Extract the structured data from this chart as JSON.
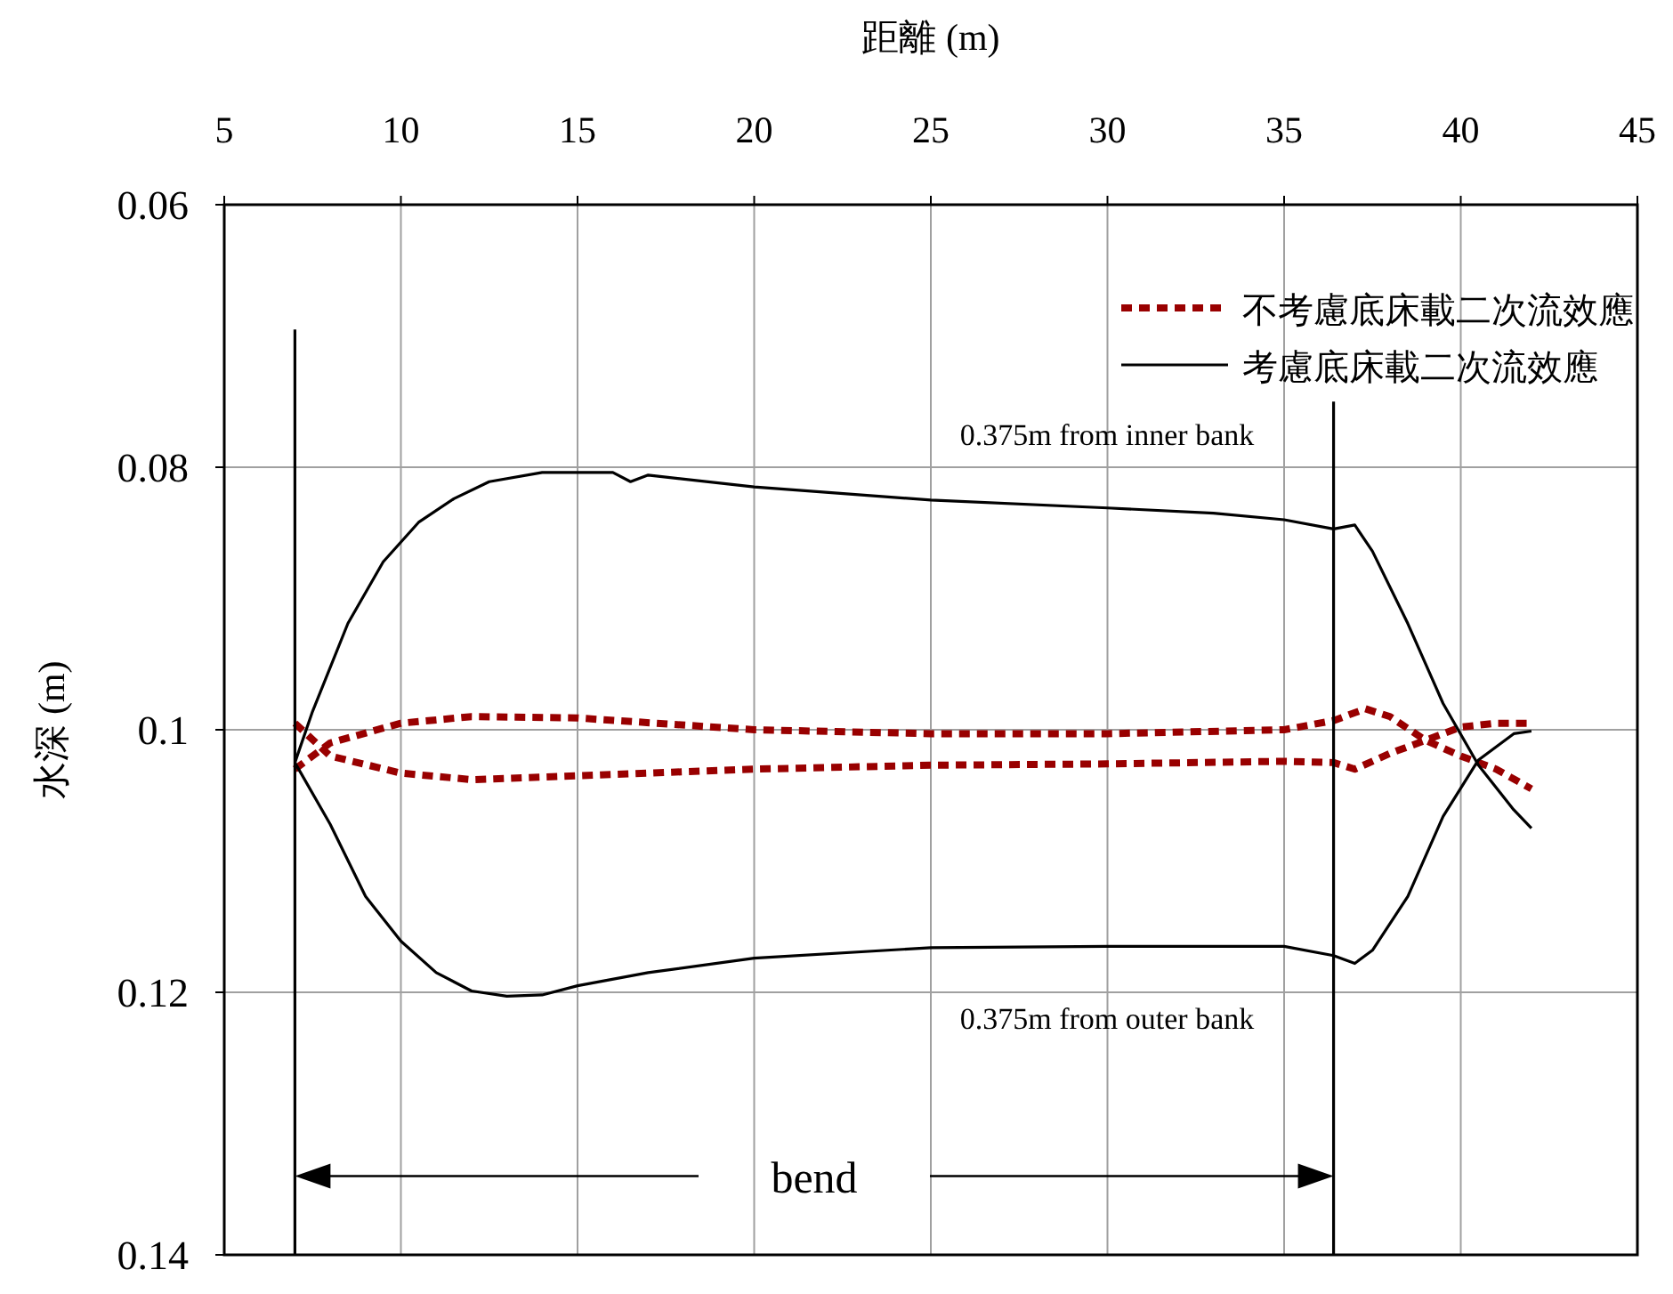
{
  "chart_data": {
    "type": "line",
    "xlabel": "距離 (m)",
    "ylabel": "水深 (m)",
    "xlim": [
      5,
      45
    ],
    "xticks": [
      5,
      10,
      15,
      20,
      25,
      30,
      35,
      40,
      45
    ],
    "ylim": [
      0.14,
      0.06
    ],
    "yticks": [
      0.06,
      0.08,
      0.1,
      0.12,
      0.14
    ],
    "grid": true,
    "legend": "top right",
    "series": [
      {
        "name": "不考慮底床載二次流效應",
        "color": "#990000",
        "line_style": "dashed",
        "x": [
          7,
          8,
          10,
          12,
          15,
          20,
          25,
          30,
          35,
          36.4,
          37.3,
          38,
          39,
          40,
          41,
          42
        ],
        "values": [
          0.103,
          0.101,
          0.0995,
          0.099,
          0.0991,
          0.1,
          0.1003,
          0.1003,
          0.1,
          0.0993,
          0.0984,
          0.099,
          0.1008,
          0.102,
          0.103,
          0.1045
        ]
      },
      {
        "color": "#990000",
        "line_style": "dashed",
        "x": [
          7,
          8,
          10,
          12,
          15,
          20,
          25,
          30,
          35,
          36.4,
          37,
          38,
          39,
          40,
          41,
          42
        ],
        "values": [
          0.0995,
          0.102,
          0.1033,
          0.1038,
          0.1035,
          0.103,
          0.1027,
          0.1026,
          0.1024,
          0.1025,
          0.103,
          0.1018,
          0.1008,
          0.0998,
          0.0995,
          0.0995
        ]
      },
      {
        "name": "考慮底床載二次流效應",
        "color": "#000000",
        "line_style": "solid",
        "x": [
          7,
          7.5,
          8.5,
          9.5,
          10.5,
          11.5,
          12.5,
          14,
          16,
          16.5,
          17,
          20,
          25,
          30,
          33,
          35,
          36.4,
          37,
          37.5,
          38.5,
          39.5,
          40.5,
          41.5,
          42
        ],
        "values": [
          0.1025,
          0.0986,
          0.0919,
          0.0872,
          0.0842,
          0.0824,
          0.0811,
          0.0804,
          0.0804,
          0.0811,
          0.0806,
          0.0815,
          0.0825,
          0.0831,
          0.0835,
          0.084,
          0.0847,
          0.0844,
          0.0864,
          0.0919,
          0.098,
          0.1027,
          0.1061,
          0.1075
        ]
      },
      {
        "color": "#000000",
        "line_style": "solid",
        "x": [
          7,
          8,
          9,
          10,
          11,
          12,
          13,
          14,
          15,
          17,
          20,
          25,
          30,
          35,
          36.4,
          37,
          37.5,
          38.5,
          39.5,
          40.5,
          41.5,
          42
        ],
        "values": [
          0.1025,
          0.1072,
          0.1127,
          0.1161,
          0.1185,
          0.1199,
          0.1203,
          0.1202,
          0.1195,
          0.1185,
          0.1174,
          0.1166,
          0.1165,
          0.1165,
          0.1172,
          0.1178,
          0.1168,
          0.1127,
          0.1066,
          0.1023,
          0.1003,
          0.1001
        ]
      },
      {
        "color": "#000000",
        "line_style": "solid",
        "x": [
          7,
          7
        ],
        "values": [
          0.0695,
          0.14
        ]
      },
      {
        "color": "#000000",
        "line_style": "solid",
        "x": [
          36.4,
          36.4
        ],
        "values": [
          0.075,
          0.14
        ]
      }
    ],
    "annotations": [
      "0.375m from inner bank",
      "0.375m from outer bank",
      "bend"
    ]
  }
}
